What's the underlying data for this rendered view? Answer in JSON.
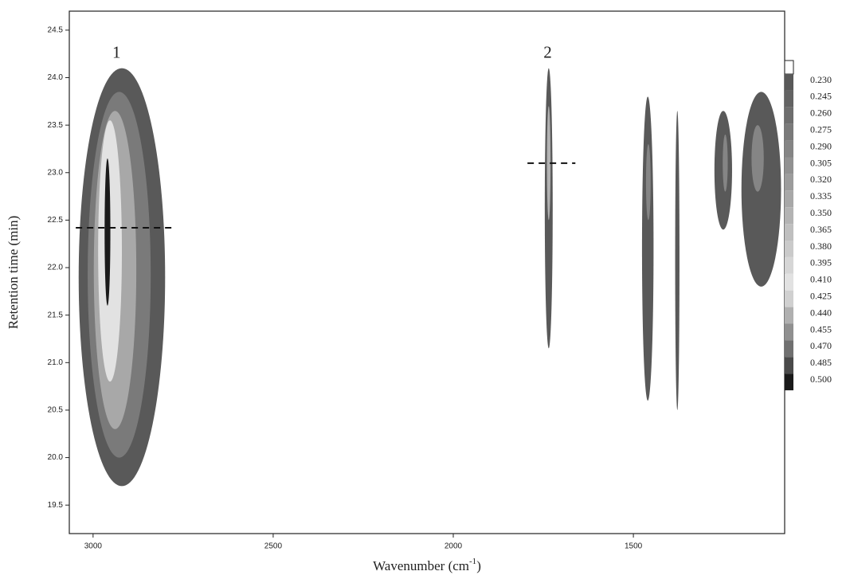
{
  "chart_data": {
    "type": "contour",
    "x_label": {
      "text": "Wavenumber (cm",
      "sup": "-1",
      "end": ")"
    },
    "y_label": "Retention time (min)",
    "xlim": [
      3066,
      1080
    ],
    "ylim": [
      19.2,
      24.7
    ],
    "xticks": [
      3000,
      2500,
      2000,
      1500
    ],
    "yticks": [
      19.5,
      {
        "value": 20,
        "label": "20.0"
      },
      20.5,
      {
        "value": 21,
        "label": "21.0"
      },
      21.5,
      {
        "value": 22,
        "label": "22.0"
      },
      22.5,
      {
        "value": 23,
        "label": "23.0"
      },
      23.5,
      {
        "value": 24,
        "label": "24.0"
      },
      24.5
    ],
    "colorbar": {
      "levels": [
        {
          "value": 0.23,
          "label": "0.230"
        },
        {
          "value": 0.245,
          "label": "0.245"
        },
        {
          "value": 0.26,
          "label": "0.260"
        },
        {
          "value": 0.275,
          "label": "0.275"
        },
        {
          "value": 0.29,
          "label": "0.290"
        },
        {
          "value": 0.305,
          "label": "0.305"
        },
        {
          "value": 0.32,
          "label": "0.320"
        },
        {
          "value": 0.335,
          "label": "0.335"
        },
        {
          "value": 0.35,
          "label": "0.350"
        },
        {
          "value": 0.365,
          "label": "0.365"
        },
        {
          "value": 0.38,
          "label": "0.380"
        },
        {
          "value": 0.395,
          "label": "0.395"
        },
        {
          "value": 0.41,
          "label": "0.410"
        },
        {
          "value": 0.425,
          "label": "0.425"
        },
        {
          "value": 0.44,
          "label": "0.440"
        },
        {
          "value": 0.455,
          "label": "0.455"
        },
        {
          "value": 0.47,
          "label": "0.470"
        },
        {
          "value": 0.485,
          "label": "0.485"
        },
        {
          "value": 0.5,
          "label": "0.500"
        }
      ],
      "colors": [
        "#595959",
        "#636363",
        "#6e6e6e",
        "#7a7a7a",
        "#858585",
        "#919191",
        "#9c9c9c",
        "#a8a8a8",
        "#b3b3b3",
        "#bfbfbf",
        "#cacaca",
        "#d6d6d6",
        "#e2e2e2",
        "#d0d0d0",
        "#b0b0b0",
        "#909090",
        "#707070",
        "#4a4a4a",
        "#1a1a1a"
      ]
    },
    "peaks": [
      {
        "rings": [
          {
            "z": 0.23,
            "x": [
              3040,
              2800
            ],
            "y": [
              19.7,
              24.1
            ]
          },
          {
            "z": 0.275,
            "x": [
              3015,
              2840
            ],
            "y": [
              20.0,
              23.85
            ]
          },
          {
            "z": 0.335,
            "x": [
              2998,
              2880
            ],
            "y": [
              20.3,
              23.65
            ]
          },
          {
            "z": 0.41,
            "x": [
              2986,
              2920
            ],
            "y": [
              20.8,
              23.55
            ]
          },
          {
            "z": 0.5,
            "x": [
              2968,
              2952
            ],
            "y": [
              21.6,
              23.15
            ]
          }
        ]
      },
      {
        "rings": [
          {
            "z": 0.23,
            "x": [
              1746,
              1724
            ],
            "y": [
              21.15,
              24.1
            ]
          },
          {
            "z": 0.35,
            "x": [
              1740,
              1730
            ],
            "y": [
              22.5,
              23.7
            ]
          }
        ]
      },
      {
        "rings": [
          {
            "z": 0.23,
            "x": [
              1476,
              1444
            ],
            "y": [
              20.6,
              23.8
            ]
          },
          {
            "z": 0.29,
            "x": [
              1465,
              1452
            ],
            "y": [
              22.5,
              23.3
            ]
          }
        ]
      },
      {
        "rings": [
          {
            "z": 0.23,
            "x": [
              1384,
              1372
            ],
            "y": [
              20.5,
              23.65
            ]
          }
        ]
      },
      {
        "rings": [
          {
            "z": 0.23,
            "x": [
              1275,
              1226
            ],
            "y": [
              22.4,
              23.65
            ]
          },
          {
            "z": 0.29,
            "x": [
              1252,
              1238
            ],
            "y": [
              22.8,
              23.4
            ]
          }
        ]
      },
      {
        "rings": [
          {
            "z": 0.23,
            "x": [
              1200,
              1090
            ],
            "y": [
              21.8,
              23.85
            ]
          },
          {
            "z": 0.29,
            "x": [
              1172,
              1138
            ],
            "y": [
              22.8,
              23.5
            ]
          }
        ]
      }
    ],
    "annotations": [
      {
        "text": "1",
        "x": 2935,
        "y": 24.25
      },
      {
        "text": "2",
        "x": 1738,
        "y": 24.25
      }
    ],
    "dashed_lines": [
      {
        "y": 22.42,
        "x": [
          3048,
          2770
        ]
      },
      {
        "y": 23.1,
        "x": [
          1794,
          1661
        ]
      }
    ]
  }
}
